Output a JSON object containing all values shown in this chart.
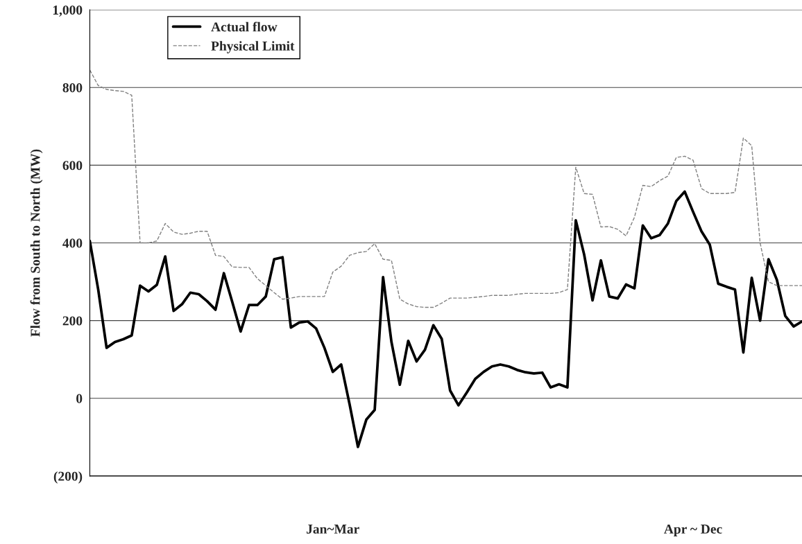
{
  "chart_data": {
    "type": "line",
    "ylabel": "Flow from South to North (MW)",
    "categories": [
      null,
      null,
      null,
      null,
      null,
      null,
      null,
      null,
      null,
      null,
      null,
      null,
      null,
      null,
      null,
      null,
      null,
      null,
      null,
      null,
      null,
      null,
      null,
      null,
      null,
      null,
      null,
      null,
      null,
      "Jan~Mar",
      null,
      null,
      null,
      null,
      null,
      null,
      null,
      null,
      null,
      null,
      null,
      null,
      null,
      null,
      null,
      null,
      null,
      null,
      null,
      null,
      null,
      null,
      null,
      null,
      null,
      null,
      null,
      null,
      null,
      null,
      null,
      null,
      null,
      null,
      null,
      null,
      null,
      null,
      null,
      null,
      null,
      null,
      "Apr ~ Dec",
      null,
      null,
      null,
      null,
      null,
      null,
      null,
      null,
      null,
      null,
      null,
      null,
      null
    ],
    "series": [
      {
        "name": "Actual flow",
        "color": "#000000",
        "line_style": "solid",
        "values": [
          405,
          280,
          130,
          145,
          152,
          162,
          290,
          275,
          292,
          365,
          225,
          242,
          272,
          268,
          250,
          228,
          322,
          248,
          172,
          240,
          240,
          262,
          358,
          363,
          182,
          195,
          198,
          180,
          130,
          68,
          87,
          -15,
          -125,
          -55,
          -30,
          312,
          145,
          35,
          148,
          95,
          125,
          188,
          153,
          20,
          -18,
          15,
          50,
          68,
          82,
          87,
          82,
          73,
          67,
          64,
          66,
          28,
          36,
          28,
          458,
          370,
          252,
          355,
          262,
          257,
          293,
          283,
          445,
          412,
          420,
          450,
          508,
          532,
          480,
          430,
          395,
          295,
          287,
          280,
          118,
          310,
          200,
          358,
          305,
          212,
          185,
          198
        ]
      },
      {
        "name": "Physical Limit",
        "color": "#808080",
        "line_style": "dashed",
        "values": [
          845,
          805,
          795,
          792,
          790,
          780,
          400,
          400,
          405,
          450,
          428,
          422,
          425,
          430,
          430,
          368,
          365,
          338,
          337,
          337,
          308,
          290,
          272,
          255,
          258,
          262,
          262,
          262,
          262,
          325,
          340,
          368,
          375,
          378,
          398,
          358,
          355,
          255,
          243,
          236,
          234,
          234,
          245,
          258,
          258,
          258,
          260,
          262,
          265,
          265,
          265,
          268,
          270,
          270,
          270,
          270,
          272,
          280,
          595,
          527,
          525,
          441,
          442,
          435,
          418,
          466,
          548,
          545,
          560,
          572,
          620,
          623,
          613,
          540,
          527,
          527,
          527,
          530,
          670,
          650,
          400,
          300,
          290,
          290,
          290,
          290
        ]
      }
    ],
    "ylim": [
      -200,
      1000
    ],
    "yticks": [
      {
        "value": -200,
        "label": "(200)"
      },
      0,
      200,
      400,
      600,
      800,
      {
        "value": 1000,
        "label": "1,000"
      }
    ],
    "grid": "y",
    "legend": "top left"
  }
}
